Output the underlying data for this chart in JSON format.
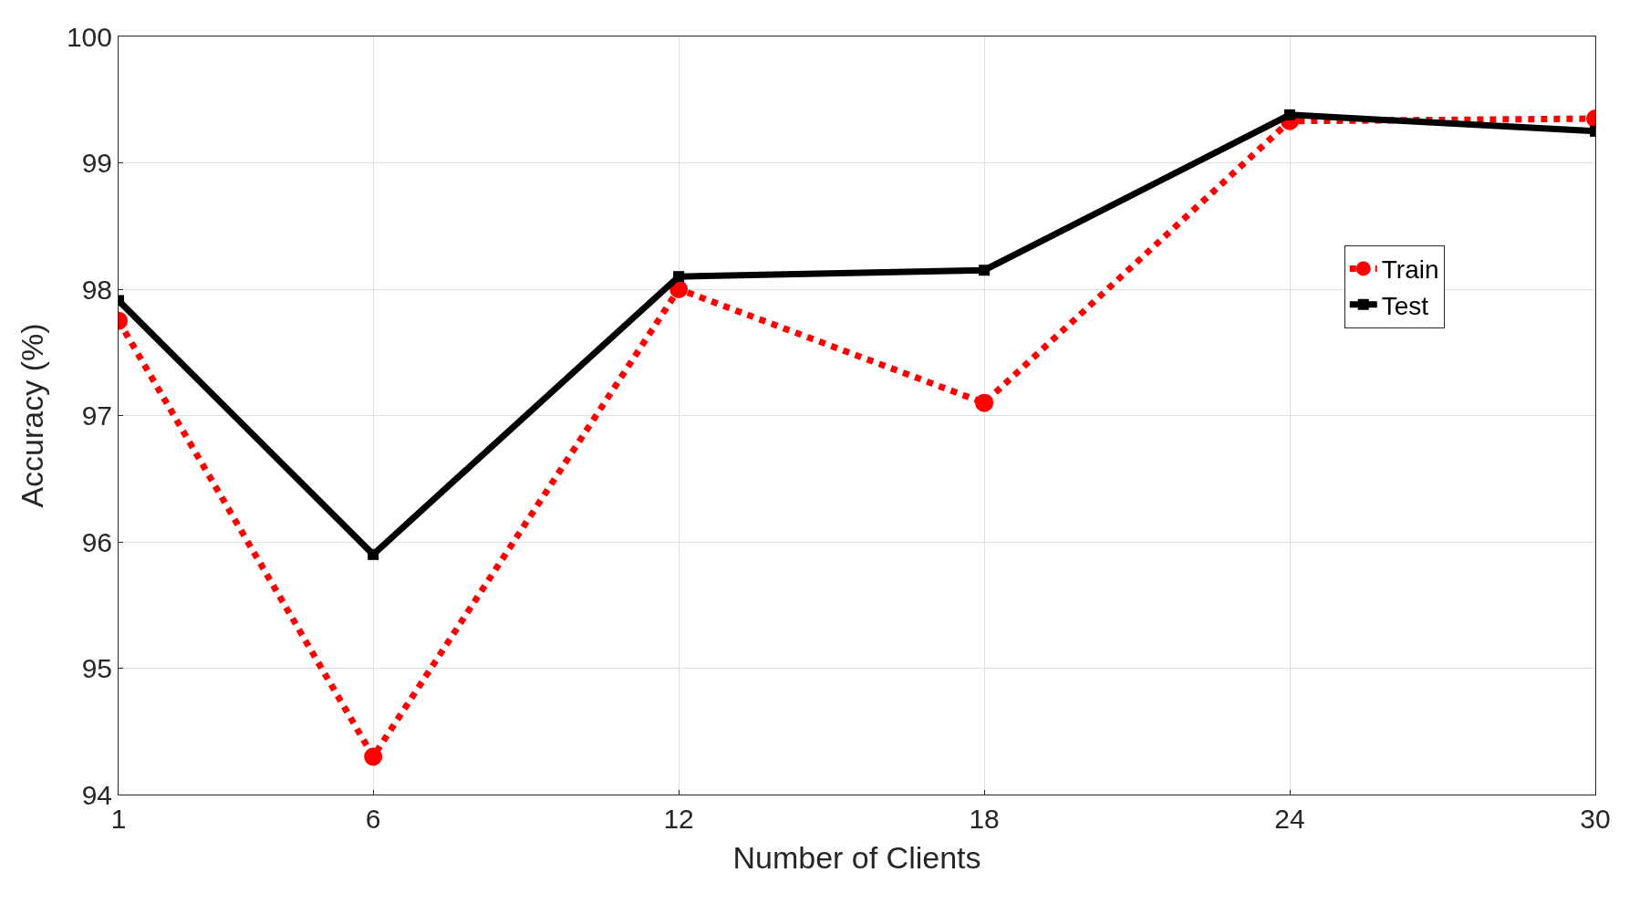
{
  "chart_data": {
    "type": "line",
    "xlabel": "Number of Clients",
    "ylabel": "Accuracy (%)",
    "x": [
      1,
      6,
      12,
      18,
      24,
      30
    ],
    "series": [
      {
        "name": "Train",
        "color": "#ff0000",
        "values": [
          97.75,
          94.3,
          98.0,
          97.1,
          99.33,
          99.35
        ],
        "marker": "circle",
        "line_style": "dotted"
      },
      {
        "name": "Test",
        "color": "#000000",
        "values": [
          97.91,
          95.9,
          98.1,
          98.15,
          99.38,
          99.25
        ],
        "marker": "square",
        "line_style": "solid"
      }
    ],
    "xlim": [
      1,
      30
    ],
    "xticks": [
      1,
      6,
      12,
      18,
      24,
      30
    ],
    "ylim": [
      94,
      100
    ],
    "yticks": [
      94,
      95,
      96,
      97,
      98,
      99,
      100
    ],
    "grid": true,
    "legend": "right"
  }
}
